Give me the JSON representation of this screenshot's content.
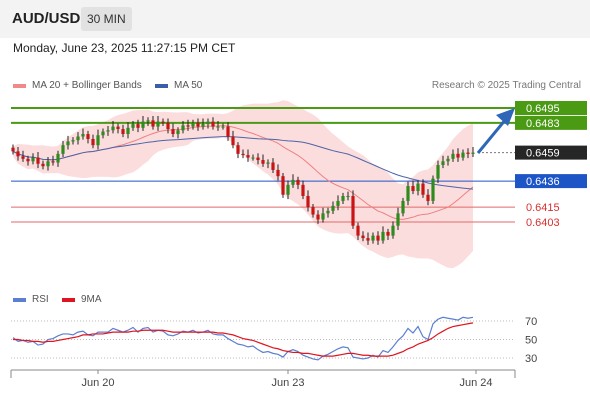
{
  "header": {
    "symbol": "AUD/USD",
    "timeframe": "30 MIN"
  },
  "datetime": "Monday, June 23, 2025 11:27:15 PM CET",
  "legend": {
    "bollinger": {
      "label": "MA 20 + Bollinger Bands",
      "color": "#f08a8a"
    },
    "ma50": {
      "label": "MA 50",
      "color": "#3b5ea8"
    }
  },
  "copyright": "Research © 2025 Trading Central",
  "rsi_legend": {
    "rsi": {
      "label": "RSI",
      "color": "#5b7fd1"
    },
    "ma9": {
      "label": "9MA",
      "color": "#e0141e"
    }
  },
  "colors": {
    "green": "#4a9a14",
    "blue": "#1d55c7",
    "red": "#e06a6a",
    "bull": "#2e8b1e",
    "bear": "#c81414",
    "band": "#fbd7d7"
  },
  "chart_data": [
    {
      "type": "candlestick",
      "title": "AUD/USD 30 MIN",
      "x_ticks": [
        "Jun 20",
        "Jun 23",
        "Jun 24"
      ],
      "ylim": [
        0.6375,
        0.6515
      ],
      "price_levels": [
        {
          "value": 0.6495,
          "label": "0.6495",
          "style": "resistance",
          "color": "#4a9a14"
        },
        {
          "value": 0.6483,
          "label": "0.6483",
          "style": "resistance",
          "color": "#4a9a14"
        },
        {
          "value": 0.6459,
          "label": "0.6459",
          "style": "current-price",
          "color": "#222222"
        },
        {
          "value": 0.6436,
          "label": "0.6436",
          "style": "pivot",
          "color": "#1d55c7"
        },
        {
          "value": 0.6415,
          "label": "0.6415",
          "style": "support",
          "color": "#e06a6a"
        },
        {
          "value": 0.6403,
          "label": "0.6403",
          "style": "support",
          "color": "#e06a6a"
        }
      ],
      "close": [
        0.646,
        0.6456,
        0.6454,
        0.6452,
        0.6455,
        0.645,
        0.6448,
        0.6452,
        0.6451,
        0.6458,
        0.6465,
        0.6468,
        0.6469,
        0.6472,
        0.6474,
        0.647,
        0.6465,
        0.6473,
        0.6476,
        0.6477,
        0.648,
        0.6478,
        0.6474,
        0.6479,
        0.6482,
        0.6479,
        0.6484,
        0.6485,
        0.648,
        0.6484,
        0.6483,
        0.6478,
        0.6474,
        0.6477,
        0.6481,
        0.648,
        0.6483,
        0.648,
        0.6482,
        0.6484,
        0.648,
        0.648,
        0.648,
        0.6472,
        0.6465,
        0.6458,
        0.6457,
        0.6455,
        0.6455,
        0.6453,
        0.645,
        0.6451,
        0.6445,
        0.644,
        0.6425,
        0.6433,
        0.6437,
        0.6433,
        0.6424,
        0.6415,
        0.6409,
        0.6405,
        0.641,
        0.6412,
        0.6416,
        0.642,
        0.6424,
        0.6424,
        0.64,
        0.6392,
        0.639,
        0.6388,
        0.6392,
        0.6388,
        0.6395,
        0.6392,
        0.64,
        0.641,
        0.642,
        0.6432,
        0.6428,
        0.6434,
        0.6425,
        0.642,
        0.6438,
        0.6449,
        0.6452,
        0.6454,
        0.6458,
        0.6455,
        0.6459,
        0.6458,
        0.6459
      ],
      "rsi": {
        "levels": [
          30,
          50,
          70
        ],
        "ylim": [
          15,
          80
        ],
        "rsi": [
          52,
          48,
          49,
          47,
          48,
          44,
          45,
          50,
          51,
          54,
          56,
          56,
          55,
          58,
          59,
          55,
          54,
          58,
          58,
          58,
          62,
          60,
          58,
          60,
          63,
          58,
          62,
          63,
          58,
          60,
          59,
          55,
          54,
          56,
          59,
          58,
          60,
          57,
          58,
          60,
          56,
          55,
          55,
          51,
          48,
          45,
          44,
          42,
          43,
          39,
          36,
          37,
          35,
          34,
          31,
          37,
          39,
          37,
          33,
          31,
          29,
          28,
          32,
          34,
          37,
          40,
          42,
          41,
          31,
          30,
          29,
          30,
          33,
          31,
          38,
          36,
          42,
          49,
          54,
          62,
          57,
          64,
          53,
          50,
          67,
          72,
          74,
          73,
          72,
          71,
          74,
          73,
          74
        ],
        "ma9": [
          50,
          50,
          49,
          49,
          48,
          48,
          47,
          48,
          48,
          49,
          50,
          51,
          52,
          53,
          55,
          55,
          56,
          56,
          56,
          57,
          58,
          58,
          58,
          58,
          59,
          59,
          60,
          60,
          60,
          60,
          60,
          59,
          58,
          58,
          58,
          58,
          58,
          58,
          58,
          58,
          58,
          57,
          57,
          56,
          55,
          53,
          51,
          50,
          49,
          47,
          45,
          43,
          41,
          40,
          38,
          37,
          36,
          36,
          35,
          35,
          34,
          33,
          32,
          32,
          32,
          33,
          34,
          35,
          35,
          34,
          33,
          33,
          32,
          32,
          32,
          32,
          33,
          35,
          37,
          40,
          42,
          45,
          47,
          49,
          52,
          56,
          59,
          62,
          64,
          65,
          66,
          67,
          68
        ]
      }
    }
  ]
}
